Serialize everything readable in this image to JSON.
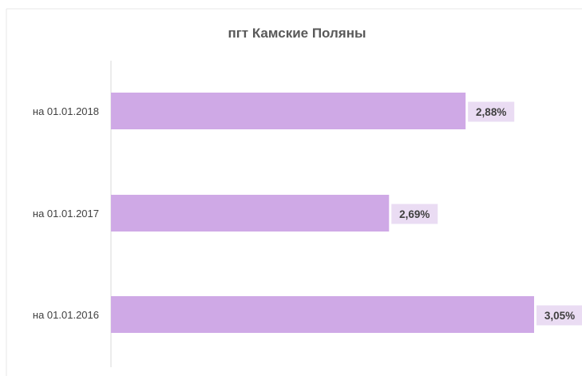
{
  "chart_data": {
    "type": "bar",
    "orientation": "horizontal",
    "title": "пгт Камские Поляны",
    "categories": [
      "на 01.01.2018",
      "на 01.01.2017",
      "на 01.01.2016"
    ],
    "values": [
      2.88,
      2.69,
      3.05
    ],
    "data_labels": [
      "2,88%",
      "2,69%",
      "3,05%"
    ],
    "xlabel": "",
    "ylabel": "",
    "xlim": [
      2.0,
      3.05
    ],
    "grid": false,
    "legend": "none",
    "colors": {
      "bar": "#cfa9e6",
      "label_background": "#eadcf3",
      "axis": "#d9d9d9",
      "title": "#595959",
      "text": "#404040"
    }
  }
}
